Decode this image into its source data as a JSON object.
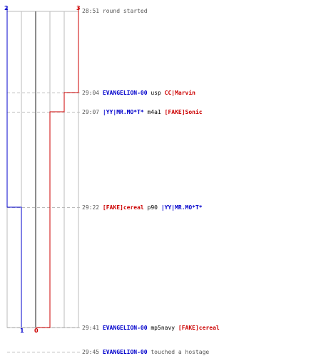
{
  "colors": {
    "team_a": "#0000cc",
    "team_b": "#cc0000",
    "grid": "#bbbbbb",
    "center": "#666666",
    "dash": "#bbbbbb"
  },
  "counts": {
    "a_start": "2",
    "b_start": "3",
    "a_end": "1",
    "b_end": "0"
  },
  "events": [
    {
      "time": "28:51",
      "parts": [
        {
          "t": "round started",
          "c": "plain"
        }
      ]
    },
    {
      "time": "29:04",
      "parts": [
        {
          "t": "EVANGELION-00",
          "c": "blue"
        },
        {
          "t": " usp ",
          "c": "weap"
        },
        {
          "t": "CC|Marvin",
          "c": "red"
        }
      ]
    },
    {
      "time": "29:07",
      "parts": [
        {
          "t": "|YY|MR.MO*T*",
          "c": "blue"
        },
        {
          "t": " m4a1 ",
          "c": "weap"
        },
        {
          "t": "[FAKE]Sonic",
          "c": "red"
        }
      ]
    },
    {
      "time": "29:22",
      "parts": [
        {
          "t": "[FAKE]cereal",
          "c": "red"
        },
        {
          "t": " p90 ",
          "c": "weap"
        },
        {
          "t": "|YY|MR.MO*T*",
          "c": "blue"
        }
      ]
    },
    {
      "time": "29:41",
      "parts": [
        {
          "t": "EVANGELION-00",
          "c": "blue"
        },
        {
          "t": " mp5navy ",
          "c": "weap"
        },
        {
          "t": "[FAKE]cereal",
          "c": "red"
        }
      ]
    },
    {
      "time": "29:45",
      "parts": [
        {
          "t": "EVANGELION-00",
          "c": "blue"
        },
        {
          "t": " touched a hostage",
          "c": "plain"
        }
      ]
    }
  ]
}
